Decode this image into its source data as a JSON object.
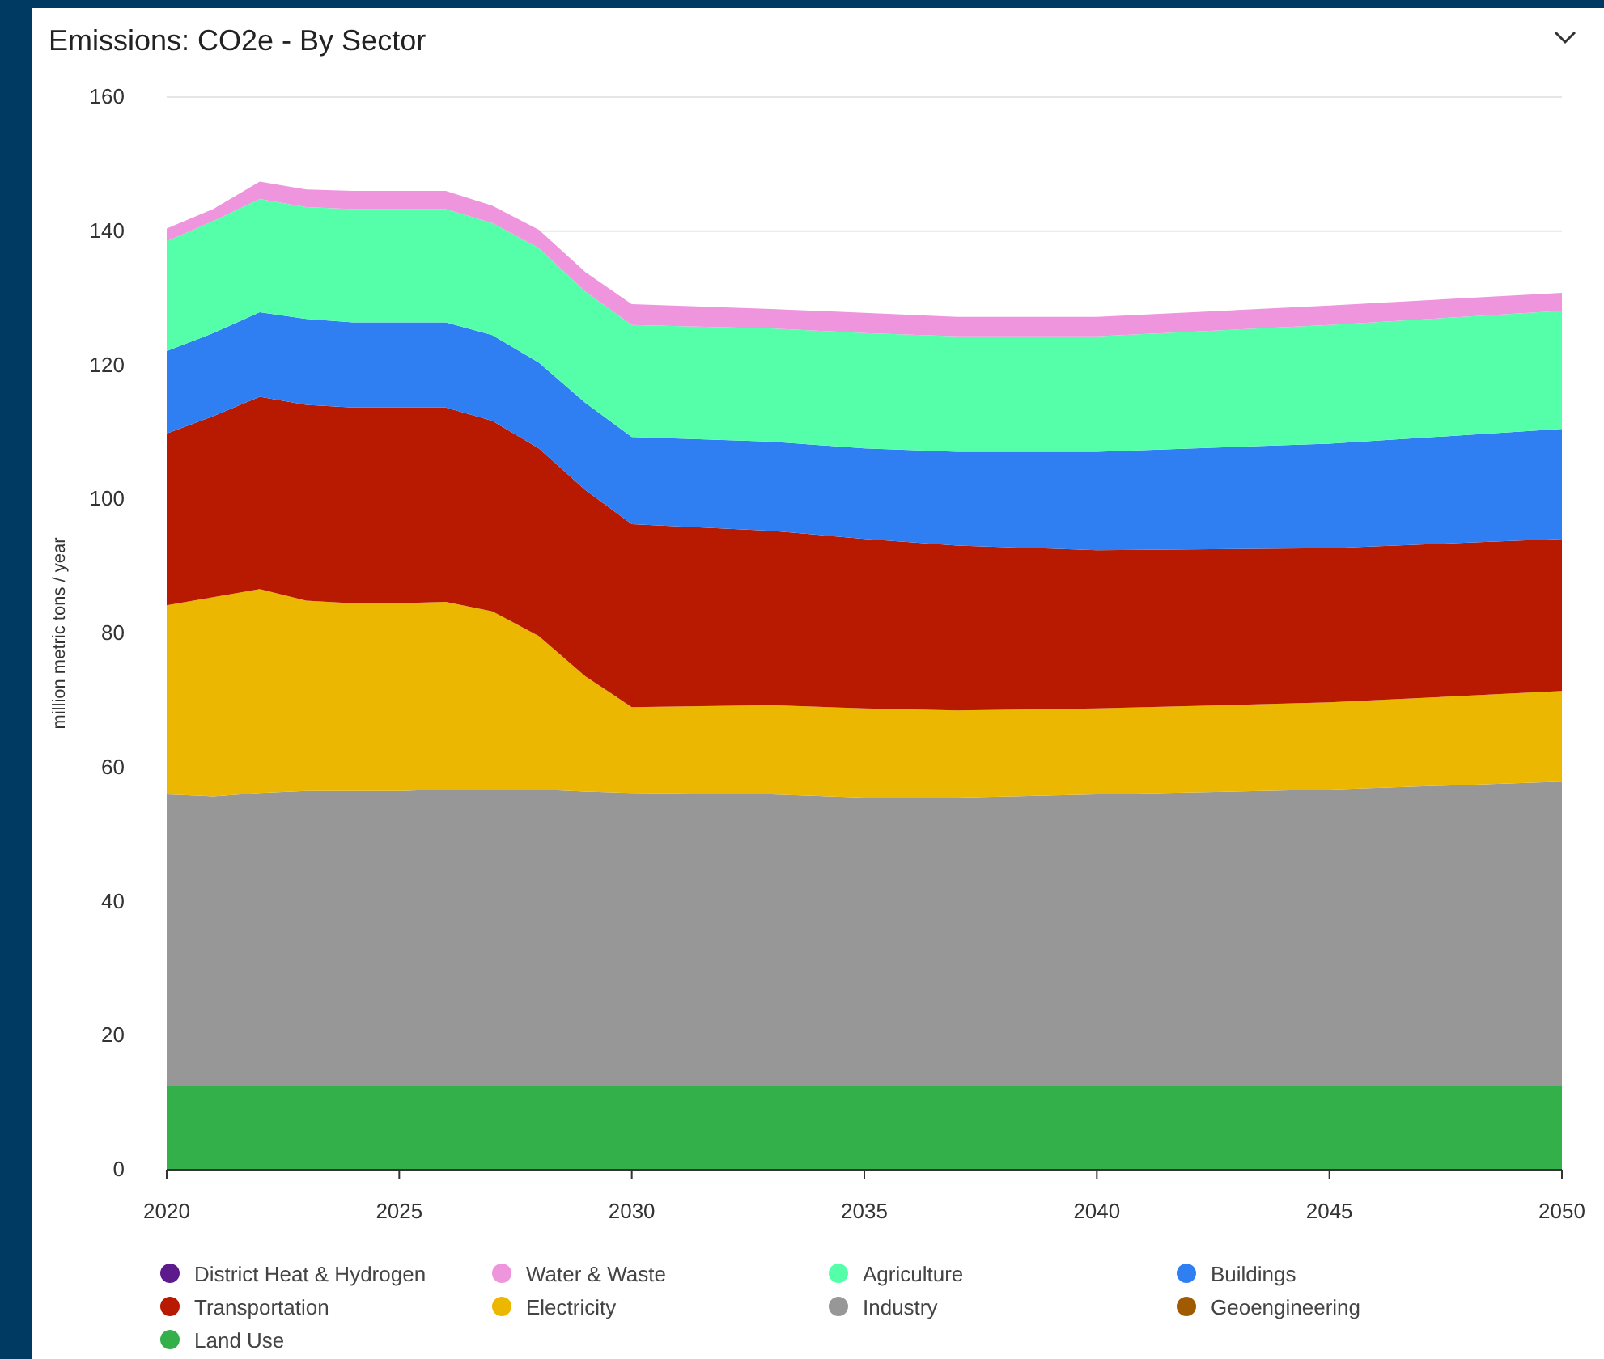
{
  "chart_data": {
    "type": "area",
    "stacked": true,
    "title": "Emissions: CO2e - By Sector",
    "ylabel": "million metric tons / year",
    "x": [
      2020,
      2021,
      2022,
      2023,
      2024,
      2025,
      2026,
      2027,
      2028,
      2029,
      2030,
      2033,
      2035,
      2037,
      2040,
      2045,
      2050
    ],
    "xlim": [
      2020,
      2050
    ],
    "xticks": [
      2020,
      2025,
      2030,
      2035,
      2040,
      2045,
      2050
    ],
    "ylim": [
      0,
      160
    ],
    "yticks": [
      0,
      20,
      40,
      60,
      80,
      100,
      120,
      140,
      160
    ],
    "grid": "y",
    "legend": "bottom",
    "series": [
      {
        "name": "Land Use",
        "color": "#33b04a",
        "values": [
          12.5,
          12.5,
          12.5,
          12.5,
          12.5,
          12.5,
          12.5,
          12.5,
          12.5,
          12.5,
          12.5,
          12.5,
          12.5,
          12.5,
          12.5,
          12.5,
          12.5
        ]
      },
      {
        "name": "Geoengineering",
        "color": "#a05a00",
        "values": [
          null,
          null,
          null,
          null,
          null,
          null,
          null,
          null,
          null,
          null,
          null,
          null,
          null,
          null,
          null,
          null,
          null
        ]
      },
      {
        "name": "Industry",
        "color": "#979797",
        "values": [
          43.5,
          43.2,
          43.7,
          44.0,
          44.0,
          44.0,
          44.2,
          44.2,
          44.2,
          43.9,
          43.7,
          43.5,
          43.0,
          43.0,
          43.5,
          44.2,
          45.4
        ]
      },
      {
        "name": "Electricity",
        "color": "#ebb700",
        "values": [
          28.2,
          29.7,
          30.4,
          28.4,
          28.0,
          28.0,
          28.0,
          26.6,
          22.9,
          17.2,
          12.8,
          13.3,
          13.3,
          13.0,
          12.8,
          13.0,
          13.5
        ]
      },
      {
        "name": "Transportation",
        "color": "#b71a00",
        "values": [
          25.6,
          27.0,
          28.7,
          29.2,
          29.2,
          29.2,
          29.0,
          28.4,
          28.0,
          27.8,
          27.3,
          26.0,
          25.3,
          24.6,
          23.6,
          23.0,
          22.7
        ]
      },
      {
        "name": "Buildings",
        "color": "#2f7ef2",
        "values": [
          12.3,
          12.4,
          12.6,
          12.8,
          12.7,
          12.7,
          12.7,
          12.8,
          12.8,
          13.0,
          13.0,
          13.3,
          13.5,
          14.0,
          14.7,
          15.6,
          16.4
        ]
      },
      {
        "name": "Agriculture",
        "color": "#55ffaa",
        "values": [
          16.4,
          16.7,
          16.9,
          16.7,
          16.9,
          16.9,
          16.9,
          16.7,
          17.1,
          16.6,
          16.7,
          16.9,
          17.2,
          17.2,
          17.2,
          17.7,
          17.6
        ]
      },
      {
        "name": "Water & Waste",
        "color": "#ee95de",
        "values": [
          1.9,
          1.8,
          2.6,
          2.6,
          2.7,
          2.7,
          2.7,
          2.6,
          2.7,
          2.9,
          3.1,
          2.9,
          3.0,
          2.9,
          2.9,
          2.9,
          2.7
        ]
      },
      {
        "name": "District Heat & Hydrogen",
        "color": "#5c1a8c",
        "values": [
          null,
          null,
          null,
          null,
          null,
          null,
          null,
          null,
          null,
          null,
          null,
          null,
          null,
          null,
          null,
          null,
          null
        ]
      }
    ]
  }
}
